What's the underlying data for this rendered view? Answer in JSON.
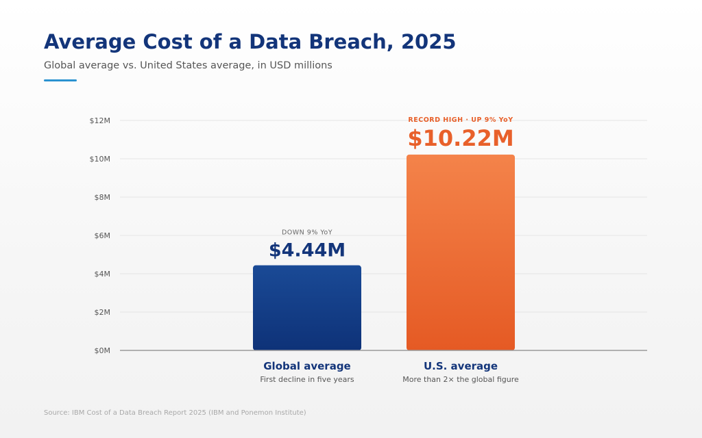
{
  "title": "Average Cost of a Data Breach, 2025",
  "subtitle": "Global average vs. United States average, in USD millions",
  "source": "Source: IBM Cost of a Data Breach Report 2025 (IBM and Ponemon Institute)",
  "colors": {
    "title": "#13357a",
    "accent_rule": "#2a92d0",
    "global_bar_top": "#1a4a96",
    "global_bar_bottom": "#0e3278",
    "us_bar_top": "#f4834a",
    "us_bar_bottom": "#e55a24",
    "us_accent_text": "#e8602a",
    "global_value_text": "#13357a"
  },
  "chart_data": {
    "type": "bar",
    "title": "Average Cost of a Data Breach, 2025",
    "xlabel": "",
    "ylabel": "",
    "ylim": [
      0,
      12
    ],
    "yticks": [
      0,
      2,
      4,
      6,
      8,
      10,
      12
    ],
    "ytick_labels": [
      "$0M",
      "$2M",
      "$4M",
      "$6M",
      "$8M",
      "$10M",
      "$12M"
    ],
    "grid": true,
    "legend": "none",
    "categories": [
      "Global average",
      "U.S. average"
    ],
    "values": [
      4.44,
      10.22
    ],
    "bars": [
      {
        "category": "Global average",
        "value": 4.44,
        "value_label": "$4.44M",
        "annotation": "DOWN 9% YoY",
        "caption": "First decline in five years"
      },
      {
        "category": "U.S. average",
        "value": 10.22,
        "value_label": "$10.22M",
        "annotation": "RECORD HIGH · UP 9% YoY",
        "caption": "More than 2× the global figure"
      }
    ]
  }
}
